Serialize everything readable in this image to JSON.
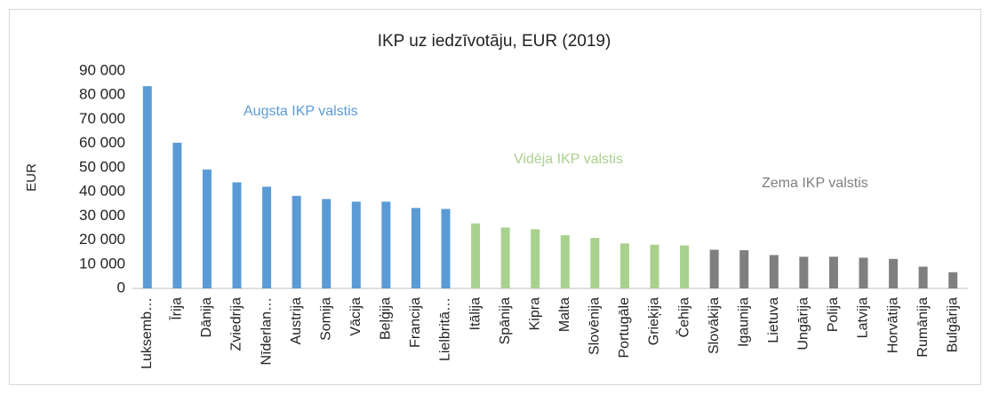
{
  "chart_data": {
    "type": "bar",
    "title": "IKP uz iedzīvotāju, EUR (2019)",
    "y_label": "EUR",
    "categories": [
      "Luksemb…",
      "Īrija",
      "Dānija",
      "Zviedrija",
      "Nīderlan…",
      "Austrija",
      "Somija",
      "Vācija",
      "Beļģija",
      "Francija",
      "Lielbritā…",
      "Itālija",
      "Spānija",
      "Kipra",
      "Malta",
      "Slovēnija",
      "Portugāle",
      "Grieķija",
      "Čehija",
      "Slovākija",
      "Igaunija",
      "Lietuva",
      "Ungārija",
      "Polija",
      "Latvija",
      "Horvātija",
      "Rumānija",
      "Bulgārija"
    ],
    "values": [
      83700,
      60300,
      49200,
      43900,
      42100,
      38300,
      37000,
      35900,
      35900,
      33300,
      32900,
      26900,
      25200,
      24500,
      22000,
      20900,
      18600,
      18100,
      17800,
      16000,
      15800,
      13800,
      13100,
      13100,
      12700,
      12200,
      9000,
      6700
    ],
    "colors": [
      "#5b9bd5",
      "#5b9bd5",
      "#5b9bd5",
      "#5b9bd5",
      "#5b9bd5",
      "#5b9bd5",
      "#5b9bd5",
      "#5b9bd5",
      "#5b9bd5",
      "#5b9bd5",
      "#5b9bd5",
      "#a9d18e",
      "#a9d18e",
      "#a9d18e",
      "#a9d18e",
      "#a9d18e",
      "#a9d18e",
      "#a9d18e",
      "#a9d18e",
      "#7f7f7f",
      "#7f7f7f",
      "#7f7f7f",
      "#7f7f7f",
      "#7f7f7f",
      "#7f7f7f",
      "#7f7f7f",
      "#7f7f7f",
      "#7f7f7f"
    ],
    "annotations": [
      {
        "text": "Augsta IKP valstis",
        "color": "#5b9bd5"
      },
      {
        "text": "Vidēja IKP valstis",
        "color": "#a9d18e"
      },
      {
        "text": "Zema IKP valstis",
        "color": "#7f7f7f"
      }
    ],
    "ylim": [
      0,
      90000
    ],
    "yticks": [
      0,
      {
        "value": 10000,
        "label": "10 000"
      },
      {
        "value": 20000,
        "label": "20 000"
      },
      {
        "value": 30000,
        "label": "30 000"
      },
      {
        "value": 40000,
        "label": "40 000"
      },
      {
        "value": 50000,
        "label": "50 000"
      },
      {
        "value": 60000,
        "label": "60 000"
      },
      {
        "value": 70000,
        "label": "70 000"
      },
      {
        "value": 80000,
        "label": "80 000"
      },
      {
        "value": 90000,
        "label": "90 000"
      }
    ],
    "grid": false
  }
}
